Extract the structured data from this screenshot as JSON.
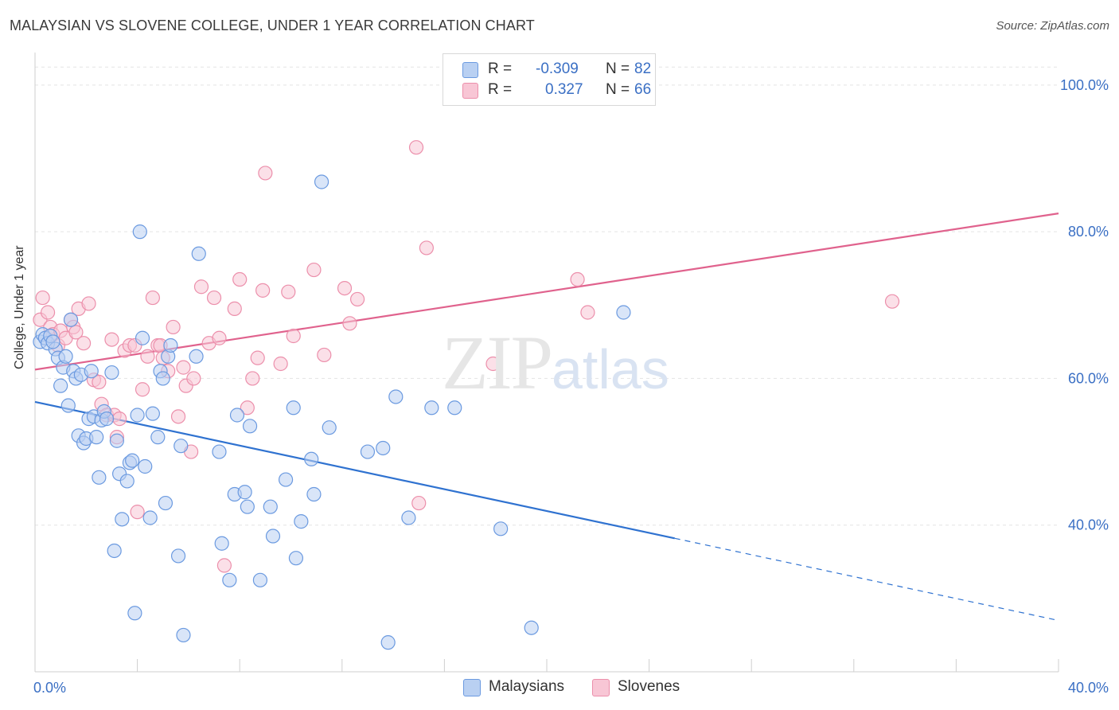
{
  "title": "MALAYSIAN VS SLOVENE COLLEGE, UNDER 1 YEAR CORRELATION CHART",
  "source": "Source: ZipAtlas.com",
  "watermark": {
    "zip": "ZIP",
    "atlas": "atlas"
  },
  "legend": {
    "rows": [
      {
        "r_label": "R =",
        "r_value": "-0.309",
        "n_label": "N =",
        "n_value": "82"
      },
      {
        "r_label": "R =",
        "r_value": "0.327",
        "n_label": "N =",
        "n_value": "66"
      }
    ]
  },
  "bottom_legend": [
    "Malaysians",
    "Slovenes"
  ],
  "colors": {
    "malaysians_fill": "#b9d0f2",
    "malaysians_stroke": "#6b9ae0",
    "malaysians_line": "#2f72d0",
    "slovenes_fill": "#f8c6d5",
    "slovenes_stroke": "#ec8fab",
    "slovenes_line": "#e0628d",
    "tick_label": "#3a6fc4",
    "grid": "#e3e3e3"
  },
  "chart_data": {
    "type": "scatter",
    "title": "MALAYSIAN VS SLOVENE COLLEGE, UNDER 1 YEAR CORRELATION CHART",
    "xlabel": "",
    "ylabel": "College, Under 1 year",
    "xlim": [
      0,
      40
    ],
    "ylim": [
      20,
      104
    ],
    "x_tick_labels": [
      "0.0%",
      "40.0%"
    ],
    "y_tick_labels": [
      "100.0%",
      "80.0%",
      "60.0%",
      "40.0%"
    ],
    "y_ticks": [
      100,
      80,
      60,
      40
    ],
    "grid": true,
    "legend_position": "top-center",
    "series": [
      {
        "name": "Malaysians",
        "points": [
          [
            0.2,
            65.0
          ],
          [
            0.3,
            66.0
          ],
          [
            0.4,
            65.5
          ],
          [
            0.5,
            64.8
          ],
          [
            0.6,
            65.8
          ],
          [
            0.8,
            64.0
          ],
          [
            0.9,
            62.8
          ],
          [
            1.0,
            59.0
          ],
          [
            1.1,
            61.5
          ],
          [
            1.2,
            63.0
          ],
          [
            1.3,
            56.3
          ],
          [
            1.4,
            68.0
          ],
          [
            1.5,
            61.0
          ],
          [
            1.6,
            60.0
          ],
          [
            1.7,
            52.2
          ],
          [
            1.8,
            60.5
          ],
          [
            1.9,
            51.2
          ],
          [
            2.0,
            51.8
          ],
          [
            2.1,
            54.5
          ],
          [
            2.2,
            61.0
          ],
          [
            2.3,
            54.8
          ],
          [
            2.4,
            52.0
          ],
          [
            2.5,
            46.5
          ],
          [
            2.6,
            54.3
          ],
          [
            2.7,
            55.5
          ],
          [
            2.8,
            54.5
          ],
          [
            3.0,
            60.8
          ],
          [
            3.1,
            36.5
          ],
          [
            3.2,
            51.5
          ],
          [
            3.3,
            47.0
          ],
          [
            3.4,
            40.8
          ],
          [
            3.6,
            46.0
          ],
          [
            3.7,
            48.5
          ],
          [
            3.8,
            48.8
          ],
          [
            3.9,
            28.0
          ],
          [
            4.0,
            55.0
          ],
          [
            4.1,
            80.0
          ],
          [
            4.2,
            65.5
          ],
          [
            4.3,
            48.0
          ],
          [
            4.5,
            41.0
          ],
          [
            4.6,
            55.2
          ],
          [
            4.8,
            52.0
          ],
          [
            4.9,
            61.0
          ],
          [
            5.0,
            60.0
          ],
          [
            5.1,
            43.0
          ],
          [
            5.2,
            63.0
          ],
          [
            5.3,
            64.5
          ],
          [
            5.6,
            35.8
          ],
          [
            5.7,
            50.8
          ],
          [
            5.8,
            25.0
          ],
          [
            6.3,
            63.0
          ],
          [
            6.4,
            77.0
          ],
          [
            7.2,
            50.0
          ],
          [
            7.3,
            37.5
          ],
          [
            7.6,
            32.5
          ],
          [
            7.8,
            44.2
          ],
          [
            7.9,
            55.0
          ],
          [
            8.2,
            44.5
          ],
          [
            8.3,
            42.5
          ],
          [
            8.4,
            53.5
          ],
          [
            8.8,
            32.5
          ],
          [
            9.2,
            42.5
          ],
          [
            9.3,
            38.5
          ],
          [
            9.8,
            46.2
          ],
          [
            10.1,
            56.0
          ],
          [
            10.2,
            35.5
          ],
          [
            10.4,
            40.5
          ],
          [
            10.8,
            49.0
          ],
          [
            10.9,
            44.2
          ],
          [
            11.2,
            86.8
          ],
          [
            11.5,
            53.3
          ],
          [
            13.0,
            50.0
          ],
          [
            13.6,
            50.5
          ],
          [
            13.8,
            24.0
          ],
          [
            14.1,
            57.5
          ],
          [
            14.6,
            41.0
          ],
          [
            15.5,
            56.0
          ],
          [
            16.4,
            56.0
          ],
          [
            18.2,
            39.5
          ],
          [
            19.4,
            26.0
          ],
          [
            23.0,
            69.0
          ],
          [
            0.7,
            65.0
          ]
        ],
        "trend": {
          "x": [
            0,
            25
          ],
          "y": [
            56.8,
            38.2
          ]
        },
        "trend_dashed": {
          "x": [
            25,
            40
          ],
          "y": [
            38.2,
            27.0
          ]
        }
      },
      {
        "name": "Slovenes",
        "points": [
          [
            0.2,
            68.0
          ],
          [
            0.3,
            71.0
          ],
          [
            0.5,
            69.0
          ],
          [
            0.6,
            67.0
          ],
          [
            0.7,
            66.0
          ],
          [
            0.9,
            64.5
          ],
          [
            1.0,
            66.5
          ],
          [
            1.2,
            65.5
          ],
          [
            1.4,
            68.0
          ],
          [
            1.5,
            67.0
          ],
          [
            1.6,
            66.3
          ],
          [
            1.7,
            69.5
          ],
          [
            1.9,
            64.8
          ],
          [
            2.1,
            70.2
          ],
          [
            2.3,
            59.8
          ],
          [
            2.5,
            59.5
          ],
          [
            2.6,
            56.5
          ],
          [
            2.8,
            55.0
          ],
          [
            3.0,
            65.3
          ],
          [
            3.1,
            55.0
          ],
          [
            3.2,
            52.0
          ],
          [
            3.3,
            54.5
          ],
          [
            3.5,
            63.8
          ],
          [
            3.7,
            64.5
          ],
          [
            3.9,
            64.5
          ],
          [
            4.0,
            41.8
          ],
          [
            4.2,
            58.5
          ],
          [
            4.4,
            63.0
          ],
          [
            4.6,
            71.0
          ],
          [
            4.8,
            64.5
          ],
          [
            4.9,
            64.5
          ],
          [
            5.0,
            62.8
          ],
          [
            5.2,
            61.0
          ],
          [
            5.4,
            67.0
          ],
          [
            5.6,
            54.8
          ],
          [
            5.8,
            61.5
          ],
          [
            5.9,
            59.0
          ],
          [
            6.1,
            50.0
          ],
          [
            6.2,
            60.0
          ],
          [
            6.5,
            72.5
          ],
          [
            6.8,
            64.8
          ],
          [
            7.0,
            71.0
          ],
          [
            7.2,
            65.5
          ],
          [
            7.4,
            34.5
          ],
          [
            7.8,
            69.5
          ],
          [
            8.0,
            73.5
          ],
          [
            8.3,
            56.0
          ],
          [
            8.5,
            60.0
          ],
          [
            8.7,
            62.8
          ],
          [
            8.9,
            72.0
          ],
          [
            9.0,
            88.0
          ],
          [
            9.6,
            62.0
          ],
          [
            9.9,
            71.8
          ],
          [
            10.1,
            65.8
          ],
          [
            10.9,
            74.8
          ],
          [
            11.3,
            63.2
          ],
          [
            12.1,
            72.3
          ],
          [
            12.3,
            67.5
          ],
          [
            12.6,
            70.8
          ],
          [
            14.9,
            91.5
          ],
          [
            15.0,
            43.0
          ],
          [
            15.3,
            77.8
          ],
          [
            17.9,
            62.0
          ],
          [
            21.2,
            73.5
          ],
          [
            21.6,
            69.0
          ],
          [
            33.5,
            70.5
          ]
        ],
        "trend": {
          "x": [
            0,
            40
          ],
          "y": [
            61.2,
            82.5
          ]
        }
      }
    ]
  }
}
